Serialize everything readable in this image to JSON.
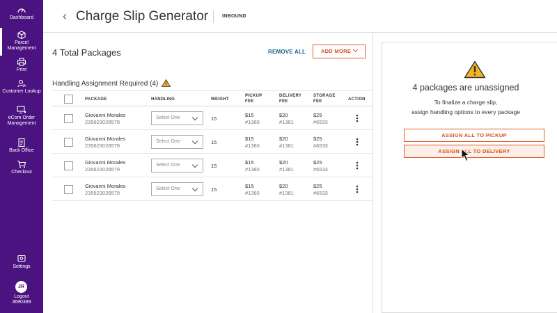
{
  "sidebar": {
    "items": [
      {
        "label": "Dashboard",
        "icon": "dashboard-icon"
      },
      {
        "label": "Parcel Management",
        "icon": "box-icon",
        "active": true
      },
      {
        "label": "Print",
        "icon": "printer-icon"
      },
      {
        "label": "Customer Lookup",
        "icon": "user-search-icon"
      },
      {
        "label": "eCom Order Management",
        "icon": "monitor-cart-icon"
      },
      {
        "label": "Back Office",
        "icon": "document-icon"
      },
      {
        "label": "Checkout",
        "icon": "cart-icon"
      }
    ],
    "settings_label": "Settings",
    "user_initials": "JR",
    "logout_label": "Logout",
    "user_id": "3690389"
  },
  "header": {
    "back_symbol": "‹",
    "title": "Charge Slip Generator",
    "mode": "INBOUND"
  },
  "packages": {
    "total_label": "4 Total Packages",
    "remove_all_label": "REMOVE ALL",
    "add_more_label": "ADD MORE",
    "section_label": "Handling Assignment Required (4)",
    "columns": {
      "package": "PACKAGE",
      "handling": "HANDLING",
      "weight": "WEIGHT",
      "pickup_1": "PICKUP",
      "pickup_2": "FEE",
      "delivery_1": "DELIVERY",
      "delivery_2": "FEE",
      "storage_1": "STORAGE",
      "storage_2": "FEE",
      "action": "ACTION"
    },
    "rows": [
      {
        "name": "Giovanni Morales",
        "tracking": "235623028579",
        "handling": "Select One",
        "weight": "15",
        "pickup_fee": "$15",
        "pickup_code": "#1360",
        "delivery_fee": "$20",
        "delivery_code": "#1381",
        "storage_fee": "$25",
        "storage_code": "#6533"
      },
      {
        "name": "Giovanni Morales",
        "tracking": "235623028579",
        "handling": "Select One",
        "weight": "15",
        "pickup_fee": "$15",
        "pickup_code": "#1360",
        "delivery_fee": "$20",
        "delivery_code": "#1381",
        "storage_fee": "$25",
        "storage_code": "#6533"
      },
      {
        "name": "Giovanni Morales",
        "tracking": "235623028579",
        "handling": "Select One",
        "weight": "15",
        "pickup_fee": "$15",
        "pickup_code": "#1360",
        "delivery_fee": "$20",
        "delivery_code": "#1381",
        "storage_fee": "$25",
        "storage_code": "#6533"
      },
      {
        "name": "Giovanni Morales",
        "tracking": "235623028579",
        "handling": "Select One",
        "weight": "15",
        "pickup_fee": "$15",
        "pickup_code": "#1360",
        "delivery_fee": "$20",
        "delivery_code": "#1381",
        "storage_fee": "$25",
        "storage_code": "#6533"
      }
    ]
  },
  "panel": {
    "heading": "4 packages are unassigned",
    "instruction_line1": "To finalize a charge slip,",
    "instruction_line2": "assign handling options to every package",
    "assign_pickup_label": "ASSIGN ALL TO PICKUP",
    "assign_delivery_label": "ASSIGN ALL TO DELIVERY"
  },
  "colors": {
    "sidebar_bg": "#4a1380",
    "accent_orange": "#e05a2b",
    "link_blue": "#1f5f8b",
    "warning_yellow": "#f2b322"
  }
}
